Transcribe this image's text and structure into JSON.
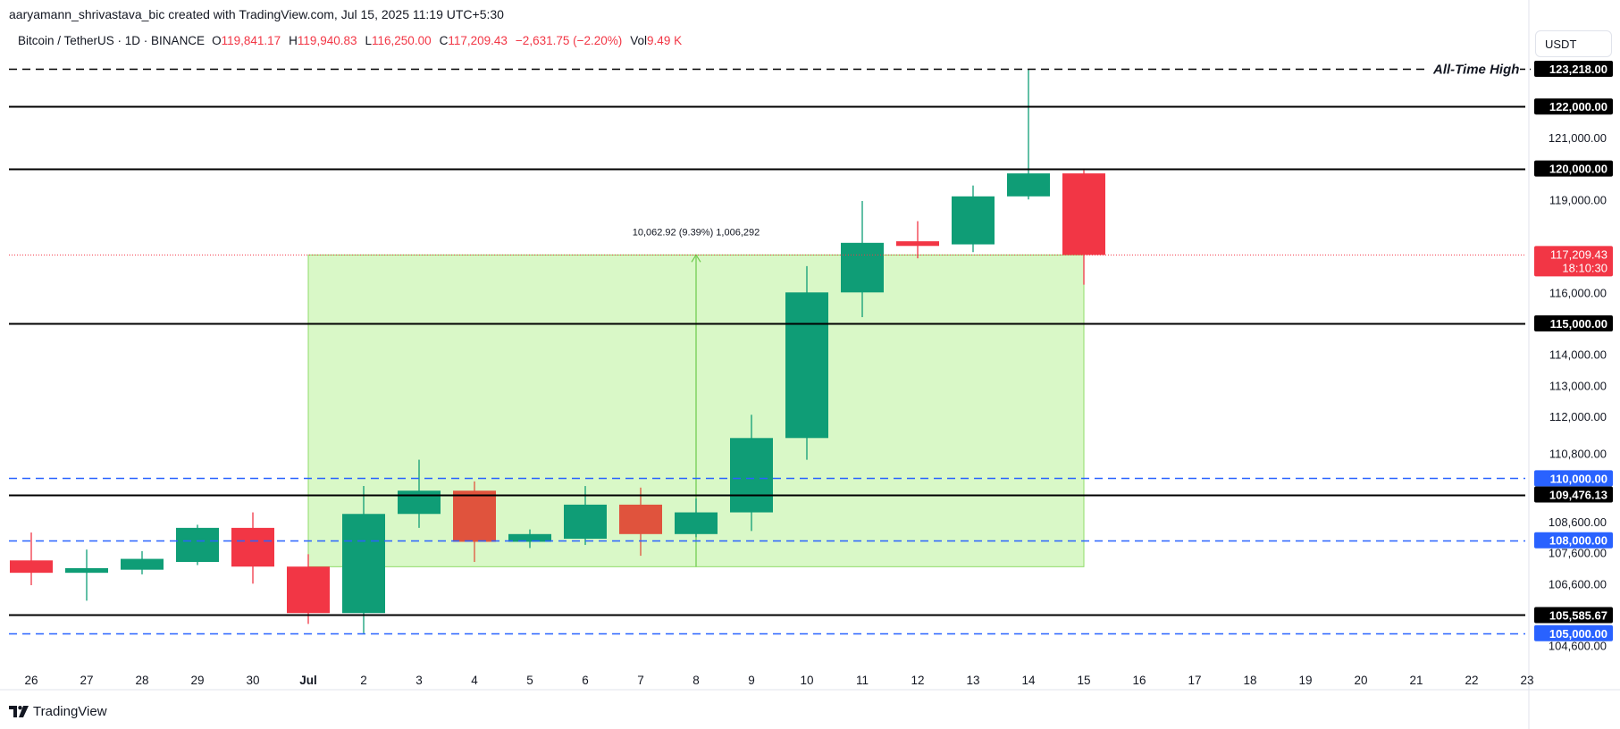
{
  "header": {
    "credit": "aaryamann_shrivastava_bic created with TradingView.com, Jul 15, 2025 11:19 UTC+5:30"
  },
  "legend": {
    "symbol": "Bitcoin / TetherUS · 1D · BINANCE",
    "open_label": "O",
    "open": "119,841.17",
    "high_label": "H",
    "high": "119,940.83",
    "low_label": "L",
    "low": "116,250.00",
    "close_label": "C",
    "close": "117,209.43",
    "change": "−2,631.75 (−2.20%)",
    "vol_label": "Vol",
    "vol": "9.49 K"
  },
  "currency_button": "USDT",
  "branding": {
    "logo_text": "TradingView",
    "logo_icon": "tradingview-logo-icon"
  },
  "colors": {
    "up": "#0f9d76",
    "down": "#f23645",
    "down_alt": "#e0533d",
    "range_fill": "#ccf5b4",
    "range_border": "#8fdb6a",
    "support_black": "#000000",
    "support_blue": "#2962ff",
    "last_price_bg": "#f23645"
  },
  "chart_data": {
    "type": "candlestick",
    "title": "Bitcoin / TetherUS · 1D · BINANCE",
    "y_range": [
      104100,
      123650
    ],
    "y_ticks": [
      {
        "value": 121000,
        "label": "121,000.00"
      },
      {
        "value": 119000,
        "label": "119,000.00"
      },
      {
        "value": 116000,
        "label": "116,000.00"
      },
      {
        "value": 114000,
        "label": "114,000.00"
      },
      {
        "value": 113000,
        "label": "113,000.00"
      },
      {
        "value": 112000,
        "label": "112,000.00"
      },
      {
        "value": 110800,
        "label": "110,800.00"
      },
      {
        "value": 108600,
        "label": "108,600.00"
      },
      {
        "value": 107600,
        "label": "107,600.00"
      },
      {
        "value": 106600,
        "label": "106,600.00"
      },
      {
        "value": 104600,
        "label": "104,600.00"
      }
    ],
    "x_labels": [
      "26",
      "27",
      "28",
      "29",
      "30",
      "Jul",
      "2",
      "3",
      "4",
      "5",
      "6",
      "7",
      "8",
      "9",
      "10",
      "11",
      "12",
      "13",
      "14",
      "15",
      "16",
      "17",
      "18",
      "19",
      "20",
      "21",
      "22",
      "23"
    ],
    "candles": [
      {
        "date": "26",
        "open": 107350,
        "high": 108250,
        "low": 106550,
        "close": 106950
      },
      {
        "date": "27",
        "open": 106950,
        "high": 107700,
        "low": 106050,
        "close": 107100
      },
      {
        "date": "28",
        "open": 107050,
        "high": 107650,
        "low": 106900,
        "close": 107400
      },
      {
        "date": "29",
        "open": 107300,
        "high": 108500,
        "low": 107200,
        "close": 108400
      },
      {
        "date": "30",
        "open": 108400,
        "high": 108900,
        "low": 106600,
        "close": 107150
      },
      {
        "date": "Jul",
        "open": 107150,
        "high": 107550,
        "low": 105300,
        "close": 105650
      },
      {
        "date": "2",
        "open": 105650,
        "high": 109750,
        "low": 105000,
        "close": 108850
      },
      {
        "date": "3",
        "open": 108850,
        "high": 110600,
        "low": 108400,
        "close": 109600
      },
      {
        "date": "4",
        "open": 109600,
        "high": 109900,
        "low": 107300,
        "close": 107950
      },
      {
        "date": "5",
        "open": 107950,
        "high": 108350,
        "low": 107750,
        "close": 108200
      },
      {
        "date": "6",
        "open": 108050,
        "high": 109750,
        "low": 107850,
        "close": 109150
      },
      {
        "date": "7",
        "open": 109150,
        "high": 109700,
        "low": 107500,
        "close": 108200
      },
      {
        "date": "8",
        "open": 108200,
        "high": 109350,
        "low": 108100,
        "close": 108900
      },
      {
        "date": "9",
        "open": 108900,
        "high": 112050,
        "low": 108300,
        "close": 111300
      },
      {
        "date": "10",
        "open": 111300,
        "high": 116850,
        "low": 110600,
        "close": 116000
      },
      {
        "date": "11",
        "open": 116000,
        "high": 118950,
        "low": 115200,
        "close": 117600
      },
      {
        "date": "12",
        "open": 117650,
        "high": 118300,
        "low": 117100,
        "close": 117500
      },
      {
        "date": "13",
        "open": 117550,
        "high": 119450,
        "low": 117300,
        "close": 119100
      },
      {
        "date": "14",
        "open": 119100,
        "high": 123218,
        "low": 119000,
        "close": 119841.17
      },
      {
        "date": "15",
        "open": 119841.17,
        "high": 119940.83,
        "low": 116250,
        "close": 117209.43
      }
    ],
    "horizontal_levels": [
      {
        "value": 123218,
        "label": "123,218.00",
        "style": "dashed",
        "color": "#000000",
        "annotation": "All-Time High"
      },
      {
        "value": 122000,
        "label": "122,000.00",
        "style": "solid",
        "color": "#000000"
      },
      {
        "value": 120000,
        "label": "120,000.00",
        "style": "solid",
        "color": "#000000"
      },
      {
        "value": 115000,
        "label": "115,000.00",
        "style": "solid",
        "color": "#000000"
      },
      {
        "value": 110000,
        "label": "110,000.00",
        "style": "dashed",
        "color": "#2962ff"
      },
      {
        "value": 109476.13,
        "label": "109,476.13",
        "style": "solid",
        "color": "#000000"
      },
      {
        "value": 108000,
        "label": "108,000.00",
        "style": "dashed",
        "color": "#2962ff"
      },
      {
        "value": 105585.67,
        "label": "105,585.67",
        "style": "solid",
        "color": "#000000"
      },
      {
        "value": 105000,
        "label": "105,000.00",
        "style": "dashed",
        "color": "#2962ff"
      }
    ],
    "last_price": {
      "value": 117209.43,
      "label": "117,209.43",
      "countdown": "18:10:30"
    },
    "measure": {
      "from_date": "Jul",
      "to_date": "15",
      "low": 107146.51,
      "high": 117209.43,
      "label": "10,062.92 (9.39%) 1,006,292"
    }
  }
}
